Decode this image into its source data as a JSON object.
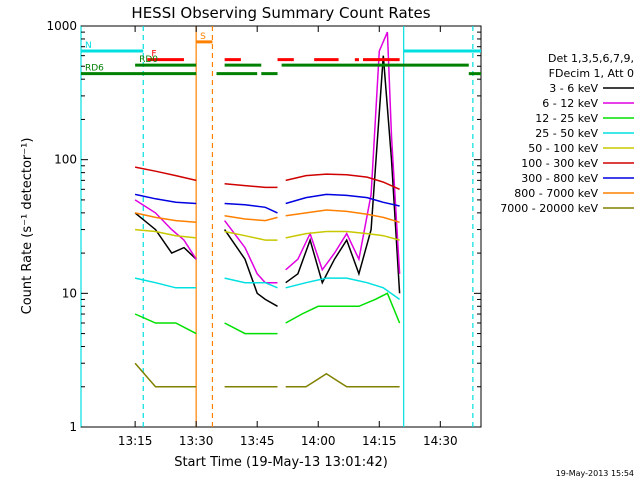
{
  "chart_data": {
    "type": "line",
    "title": "HESSI Observing Summary Count Rates",
    "xlabel": "Start Time (19-May-13 13:01:42)",
    "ylabel": "Count Rate (s⁻¹ detector⁻¹)",
    "y_scale": "log",
    "ylim": [
      1,
      1000
    ],
    "xlim": [
      "13:01:42",
      "14:40:00"
    ],
    "x_ticks": [
      "13:15",
      "13:30",
      "13:45",
      "14:00",
      "14:15",
      "14:30"
    ],
    "y_ticks": [
      "1",
      "10",
      "100",
      "1000"
    ],
    "grid": false,
    "legend_position": "right",
    "legend_header": [
      "Det 1,3,5,6,7,9,",
      "FDecim 1, Att 0"
    ],
    "footer_date": "19-May-2013 15:54",
    "series": [
      {
        "name": "3 - 6 keV",
        "color": "#000000",
        "segments": [
          {
            "x": [
              "13:15",
              "13:20",
              "13:24",
              "13:27",
              "13:30"
            ],
            "y": [
              40,
              30,
              20,
              22,
              18
            ]
          },
          {
            "x": [
              "13:37",
              "13:42",
              "13:45",
              "13:47",
              "13:50"
            ],
            "y": [
              30,
              18,
              10,
              9,
              8
            ]
          },
          {
            "x": [
              "13:52",
              "13:55",
              "13:58",
              "14:01",
              "14:04",
              "14:07",
              "14:10",
              "14:13",
              "14:16",
              "14:18",
              "14:20"
            ],
            "y": [
              12,
              14,
              25,
              12,
              18,
              25,
              14,
              30,
              600,
              100,
              10
            ]
          }
        ]
      },
      {
        "name": "6 - 12 keV",
        "color": "#e000e0",
        "segments": [
          {
            "x": [
              "13:15",
              "13:20",
              "13:24",
              "13:27",
              "13:30"
            ],
            "y": [
              50,
              40,
              30,
              25,
              18
            ]
          },
          {
            "x": [
              "13:37",
              "13:42",
              "13:45",
              "13:47",
              "13:50"
            ],
            "y": [
              35,
              22,
              14,
              12,
              12
            ]
          },
          {
            "x": [
              "13:52",
              "13:55",
              "13:58",
              "14:01",
              "14:04",
              "14:07",
              "14:10",
              "14:13",
              "14:15",
              "14:17",
              "14:18",
              "14:20"
            ],
            "y": [
              15,
              18,
              28,
              15,
              20,
              28,
              18,
              55,
              650,
              900,
              150,
              14
            ]
          }
        ]
      },
      {
        "name": "12 - 25 keV",
        "color": "#00e000",
        "segments": [
          {
            "x": [
              "13:15",
              "13:20",
              "13:25",
              "13:30"
            ],
            "y": [
              7,
              6,
              6,
              5
            ]
          },
          {
            "x": [
              "13:37",
              "13:42",
              "13:47",
              "13:50"
            ],
            "y": [
              6,
              5,
              5,
              5
            ]
          },
          {
            "x": [
              "13:52",
              "13:56",
              "14:00",
              "14:05",
              "14:10",
              "14:14",
              "14:17",
              "14:20"
            ],
            "y": [
              6,
              7,
              8,
              8,
              8,
              9,
              10,
              6
            ]
          }
        ]
      },
      {
        "name": "25 - 50 keV",
        "color": "#00e0e0",
        "segments": [
          {
            "x": [
              "13:15",
              "13:20",
              "13:25",
              "13:30"
            ],
            "y": [
              13,
              12,
              11,
              11
            ]
          },
          {
            "x": [
              "13:37",
              "13:42",
              "13:47",
              "13:50"
            ],
            "y": [
              13,
              12,
              12,
              11
            ]
          },
          {
            "x": [
              "13:52",
              "13:57",
              "14:02",
              "14:07",
              "14:12",
              "14:16",
              "14:20"
            ],
            "y": [
              11,
              12,
              13,
              13,
              12,
              11,
              9
            ]
          }
        ]
      },
      {
        "name": "50 - 100 keV",
        "color": "#c8c800",
        "segments": [
          {
            "x": [
              "13:15",
              "13:20",
              "13:25",
              "13:30"
            ],
            "y": [
              30,
              29,
              27,
              26
            ]
          },
          {
            "x": [
              "13:37",
              "13:42",
              "13:47",
              "13:50"
            ],
            "y": [
              29,
              27,
              25,
              25
            ]
          },
          {
            "x": [
              "13:52",
              "13:57",
              "14:02",
              "14:07",
              "14:12",
              "14:16",
              "14:20"
            ],
            "y": [
              26,
              28,
              29,
              29,
              28,
              27,
              25
            ]
          }
        ]
      },
      {
        "name": "100 - 300 keV",
        "color": "#d00000",
        "segments": [
          {
            "x": [
              "13:15",
              "13:20",
              "13:25",
              "13:30"
            ],
            "y": [
              88,
              82,
              76,
              70
            ]
          },
          {
            "x": [
              "13:37",
              "13:42",
              "13:47",
              "13:50"
            ],
            "y": [
              66,
              64,
              62,
              62
            ]
          },
          {
            "x": [
              "13:52",
              "13:57",
              "14:02",
              "14:07",
              "14:12",
              "14:16",
              "14:20"
            ],
            "y": [
              70,
              76,
              78,
              77,
              74,
              68,
              60
            ]
          }
        ]
      },
      {
        "name": "300 - 800 keV",
        "color": "#0000e0",
        "segments": [
          {
            "x": [
              "13:15",
              "13:20",
              "13:25",
              "13:30"
            ],
            "y": [
              55,
              51,
              48,
              47
            ]
          },
          {
            "x": [
              "13:37",
              "13:42",
              "13:47",
              "13:50"
            ],
            "y": [
              47,
              46,
              44,
              40
            ]
          },
          {
            "x": [
              "13:52",
              "13:57",
              "14:02",
              "14:07",
              "14:12",
              "14:16",
              "14:20"
            ],
            "y": [
              47,
              52,
              55,
              54,
              52,
              48,
              45
            ]
          }
        ]
      },
      {
        "name": "800 - 7000 keV",
        "color": "#ff8000",
        "segments": [
          {
            "x": [
              "13:15",
              "13:20",
              "13:25",
              "13:30"
            ],
            "y": [
              40,
              37,
              35,
              34
            ]
          },
          {
            "x": [
              "13:37",
              "13:42",
              "13:47",
              "13:50"
            ],
            "y": [
              38,
              36,
              35,
              37
            ]
          },
          {
            "x": [
              "13:52",
              "13:57",
              "14:02",
              "14:07",
              "14:12",
              "14:16",
              "14:20"
            ],
            "y": [
              38,
              40,
              42,
              41,
              39,
              37,
              34
            ]
          }
        ]
      },
      {
        "name": "7000 - 20000 keV",
        "color": "#808000",
        "segments": [
          {
            "x": [
              "13:15",
              "13:20",
              "13:25",
              "13:30"
            ],
            "y": [
              3,
              2,
              2,
              2
            ]
          },
          {
            "x": [
              "13:37",
              "13:42",
              "13:47",
              "13:50"
            ],
            "y": [
              2,
              2,
              2,
              2
            ]
          },
          {
            "x": [
              "13:52",
              "13:57",
              "14:02",
              "14:07",
              "14:12",
              "14:16",
              "14:20"
            ],
            "y": [
              2,
              2,
              2.5,
              2,
              2,
              2,
              2
            ]
          }
        ]
      }
    ],
    "annotation_bars": [
      {
        "label": "N",
        "color": "#00e0e0",
        "y": 650,
        "segments": [
          [
            "13:01:42",
            "13:17"
          ],
          [
            "14:21",
            "14:40"
          ]
        ]
      },
      {
        "label": "S",
        "color": "#ff8000",
        "y": 760,
        "segments": [
          [
            "13:30",
            "13:34"
          ]
        ]
      },
      {
        "label": "F",
        "color": "#ff0000",
        "y": 560,
        "segments": [
          [
            "13:18",
            "13:27"
          ],
          [
            "13:37",
            "13:41"
          ],
          [
            "13:50",
            "13:54"
          ],
          [
            "13:59",
            "14:05"
          ],
          [
            "14:09",
            "14:10"
          ],
          [
            "14:11",
            "14:20"
          ]
        ]
      },
      {
        "label": "RD0",
        "color": "#008000",
        "y": 510,
        "segments": [
          [
            "13:15",
            "13:30"
          ],
          [
            "13:37",
            "13:46"
          ],
          [
            "13:51",
            "14:37"
          ]
        ]
      },
      {
        "label": "RD6",
        "color": "#008000",
        "y": 440,
        "segments": [
          [
            "13:01:42",
            "13:30"
          ],
          [
            "13:35",
            "13:45"
          ],
          [
            "13:46",
            "13:50"
          ],
          [
            "14:37",
            "14:40"
          ]
        ]
      }
    ],
    "markers": [
      {
        "color": "#00e0e0",
        "style": "solid",
        "x": "13:01:42"
      },
      {
        "color": "#00e0e0",
        "style": "dashed",
        "x": "13:17"
      },
      {
        "color": "#ff8000",
        "style": "solid",
        "x": "13:30"
      },
      {
        "color": "#ff8000",
        "style": "dashed",
        "x": "13:34"
      },
      {
        "color": "#00e0e0",
        "style": "solid",
        "x": "14:21"
      },
      {
        "color": "#00e0e0",
        "style": "dashed",
        "x": "14:38"
      }
    ]
  }
}
